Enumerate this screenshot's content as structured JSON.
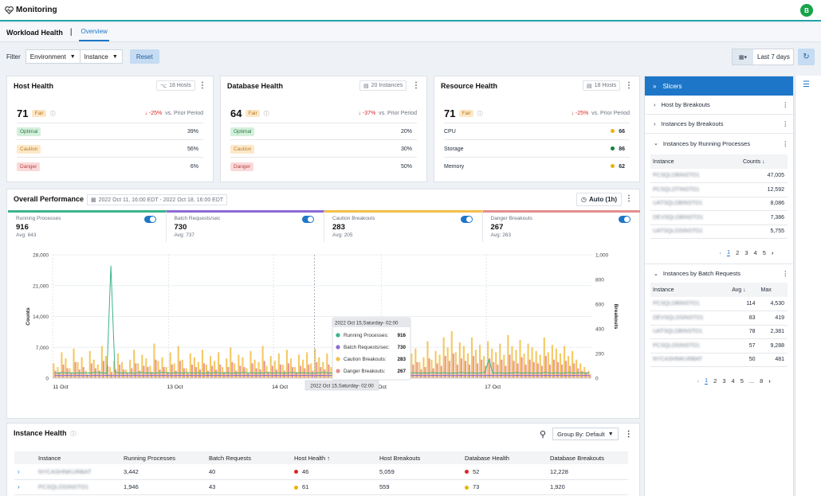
{
  "app": {
    "title": "Monitoring",
    "avatar": "B"
  },
  "nav": {
    "section": "Workload Health",
    "separator": "|",
    "tab": "Overview"
  },
  "filters": {
    "label": "Filter",
    "environment": "Environment",
    "instance": "Instance",
    "reset": "Reset",
    "date_range": "Last 7 days"
  },
  "host": {
    "title": "Host Health",
    "badge": "18 Hosts",
    "score": "71",
    "rating": "Fair",
    "delta": "↓ -25%",
    "prior": "vs. Prior Period",
    "rows": [
      {
        "label": "Optimal",
        "value": "39%"
      },
      {
        "label": "Caution",
        "value": "56%"
      },
      {
        "label": "Danger",
        "value": "6%"
      }
    ]
  },
  "database": {
    "title": "Database Health",
    "badge": "20 Instances",
    "score": "64",
    "rating": "Fair",
    "delta": "↓ -37%",
    "prior": "vs. Prior Period",
    "rows": [
      {
        "label": "Optimal",
        "value": "20%"
      },
      {
        "label": "Caution",
        "value": "30%"
      },
      {
        "label": "Danger",
        "value": "50%"
      }
    ]
  },
  "resource": {
    "title": "Resource Health",
    "badge": "18 Hosts",
    "score": "71",
    "rating": "Fair",
    "delta": "↓ -25%",
    "prior": "vs. Prior Period",
    "rows": [
      {
        "label": "CPU",
        "value": "66",
        "color": "#eab308"
      },
      {
        "label": "Storage",
        "value": "86",
        "color": "#15803d"
      },
      {
        "label": "Memory",
        "value": "62",
        "color": "#eab308"
      }
    ]
  },
  "performance": {
    "title": "Overall Performance",
    "date": "2022 Oct 11, 16:00 EDT - 2022 Oct 18, 16:00 EDT",
    "auto": "Auto (1h)",
    "metrics": [
      {
        "label": "Running Processes",
        "value": "916",
        "avg": "Avg: 643",
        "color": "#3cb38a"
      },
      {
        "label": "Batch Requests/sec",
        "value": "730",
        "avg": "Avg: 737",
        "color": "#8b6bd4"
      },
      {
        "label": "Caution Breakouts",
        "value": "283",
        "avg": "Avg: 205",
        "color": "#f2c04a"
      },
      {
        "label": "Danger Breakouts",
        "value": "267",
        "avg": "Avg: 263",
        "color": "#e48f8f"
      }
    ]
  },
  "chart_data": {
    "type": "bar",
    "left_ticks": [
      "28,000",
      "21,000",
      "14,000",
      "7,000",
      "0"
    ],
    "right_ticks": [
      "1,000",
      "800",
      "600",
      "400",
      "200",
      "0"
    ],
    "ylabel": "Counts",
    "y2label": "Breakouts",
    "x_ticks": [
      "11 Oct",
      "13 Oct",
      "14 Oct",
      "Oct",
      "17 Oct"
    ],
    "ylim": [
      0,
      28000
    ],
    "y2lim": [
      0,
      1000
    ],
    "legend": [
      {
        "name": "Running Processes",
        "value": "916",
        "color": "#3cb38a"
      },
      {
        "name": "Batch Requests/sec",
        "value": "730",
        "color": "#8b6bd4"
      },
      {
        "name": "Caution Breakouts",
        "value": "283",
        "color": "#f2c04a"
      },
      {
        "name": "Danger Breakouts",
        "value": "267",
        "color": "#e48f8f"
      }
    ],
    "tooltip_title": "2022 Oct 15,Saturday- 02:00",
    "crosshair_label": "2022 Oct 15,Saturday- 02:00",
    "series": [
      {
        "name": "Caution Breakouts",
        "axis": "right",
        "values": [
          120,
          90,
          210,
          160,
          80,
          240,
          130,
          170,
          60,
          220,
          150,
          110,
          260,
          180,
          90,
          140,
          200,
          130,
          70,
          150,
          230,
          120,
          190,
          160,
          100,
          280,
          140,
          170,
          90,
          210,
          120,
          260,
          150,
          80,
          200,
          170,
          130,
          230,
          110,
          180,
          140,
          210,
          90,
          160,
          250,
          120,
          190,
          170,
          80,
          220,
          150,
          130,
          260,
          100,
          180,
          140,
          200,
          110,
          230,
          160,
          90,
          190,
          150,
          210,
          120,
          240,
          170,
          130,
          200,
          90,
          180,
          150,
          120,
          230,
          160,
          100,
          270,
          140,
          190,
          170,
          80,
          210,
          150,
          120,
          180,
          130,
          280,
          160,
          110,
          200,
          240,
          130,
          170,
          300,
          150,
          220,
          190,
          330,
          250,
          380,
          210,
          290,
          260,
          200,
          330,
          230,
          270,
          180,
          300,
          240,
          210,
          280,
          190,
          350,
          260,
          230,
          310,
          200,
          280,
          250,
          220,
          190,
          330,
          210,
          270,
          240,
          200,
          260,
          180,
          220,
          150,
          120,
          90,
          60
        ]
      },
      {
        "name": "Danger Breakouts",
        "axis": "right",
        "values": [
          60,
          50,
          110,
          80,
          40,
          130,
          70,
          90,
          30,
          120,
          80,
          60,
          140,
          100,
          50,
          70,
          110,
          70,
          40,
          80,
          120,
          60,
          100,
          90,
          50,
          150,
          70,
          90,
          50,
          110,
          60,
          140,
          80,
          40,
          110,
          90,
          70,
          120,
          60,
          100,
          70,
          110,
          50,
          90,
          130,
          60,
          100,
          90,
          40,
          120,
          80,
          70,
          140,
          50,
          100,
          70,
          110,
          60,
          120,
          90,
          50,
          100,
          80,
          110,
          60,
          130,
          90,
          70,
          110,
          50,
          100,
          80,
          60,
          120,
          90,
          50,
          150,
          70,
          100,
          90,
          40,
          110,
          80,
          60,
          100,
          70,
          160,
          90,
          60,
          110,
          130,
          70,
          90,
          160,
          80,
          120,
          100,
          180,
          140,
          200,
          110,
          160,
          140,
          110,
          180,
          120,
          150,
          100,
          160,
          130,
          110,
          150,
          100,
          190,
          140,
          120,
          170,
          110,
          150,
          130,
          120,
          100,
          180,
          110,
          150,
          130,
          110,
          140,
          100,
          120,
          80,
          60,
          50,
          30
        ]
      },
      {
        "name": "Running Processes",
        "axis": "left",
        "values": [
          1200,
          1100,
          1300,
          1150,
          1250,
          1100,
          1200,
          1180,
          1220,
          1150,
          1300,
          1250,
          1200,
          1100,
          25500,
          1300,
          1200,
          1150,
          1250,
          1200,
          1100,
          1300,
          1250,
          1180,
          1200,
          1150,
          1250,
          1300,
          1200,
          1100,
          1250,
          1200,
          1150,
          1300,
          1180,
          1200,
          1250,
          1100,
          1200,
          1150,
          1300,
          1200,
          1180,
          1250,
          1100,
          1200,
          1150,
          1300,
          1200,
          1250,
          1100,
          1200,
          1180,
          1300,
          1150,
          1200,
          1250,
          1100,
          1200,
          1300,
          1150,
          1250,
          1200,
          1180,
          1100,
          1200,
          1250,
          1300,
          1150,
          1200,
          1100,
          1250,
          1200,
          1180,
          1300,
          1150,
          1200,
          1250,
          1100,
          1200,
          1150,
          1300,
          1200,
          1180,
          1250,
          1100,
          1200,
          1300,
          1150,
          1200,
          1250,
          1100,
          1200,
          1180,
          1300,
          1150,
          1200,
          1250,
          1100,
          1200,
          1150,
          1300,
          1200,
          1180,
          1250,
          1100,
          1200,
          1300,
          4200,
          1150,
          1200,
          1250,
          1100,
          1200,
          1180,
          1300,
          1150,
          1200,
          1250,
          1100,
          1200,
          1150,
          1300,
          1200,
          1180,
          1250,
          1100,
          1200,
          1300,
          1150,
          1200,
          1250,
          1100,
          1200
        ]
      },
      {
        "name": "Batch Requests/sec",
        "axis": "left",
        "values": [
          600,
          620,
          580,
          640,
          610,
          590,
          630,
          600,
          620,
          580,
          640,
          610,
          590,
          630,
          600,
          620,
          580,
          640,
          610,
          590,
          630,
          600,
          620,
          580,
          640,
          610,
          590,
          630,
          600,
          620,
          580,
          640,
          610,
          590,
          630,
          600,
          620,
          580,
          640,
          610,
          590,
          630,
          600,
          620,
          580,
          640,
          610,
          590,
          630,
          600,
          620,
          580,
          640,
          610,
          590,
          630,
          600,
          620,
          580,
          640,
          610,
          590,
          630,
          600,
          620,
          580,
          640,
          610,
          590,
          630,
          600,
          620,
          580,
          640,
          610,
          590,
          630,
          600,
          620,
          580,
          640,
          610,
          590,
          630,
          600,
          620,
          580,
          640,
          610,
          590,
          630,
          600,
          620,
          580,
          640,
          610,
          590,
          630,
          600,
          620,
          580,
          640,
          610,
          590,
          630,
          600,
          620,
          580,
          640,
          610,
          590,
          630,
          600,
          620,
          580,
          640,
          610,
          590,
          630,
          600,
          620,
          580,
          640,
          610,
          590,
          630,
          600,
          620,
          580,
          640,
          610,
          590,
          630,
          600
        ]
      }
    ]
  },
  "instance_health": {
    "title": "Instance Health",
    "group_by": "Group By: Default",
    "columns": [
      "Instance",
      "Running Processes",
      "Batch Requests",
      "Host Health ↑",
      "Host Breakouts",
      "Database Health",
      "Database Breakouts"
    ],
    "rows": [
      {
        "instance": "NYCASHNKURBAT",
        "running": "3,442",
        "batch": "40",
        "host_health": "46",
        "host_color": "#dc2626",
        "host_breakouts": "5,059",
        "db_health": "52",
        "db_color": "#dc2626",
        "db_breakouts": "12,228"
      },
      {
        "instance": "PCSQLOSINSTO1",
        "running": "1,946",
        "batch": "43",
        "host_health": "61",
        "host_color": "#eab308",
        "host_breakouts": "559",
        "db_health": "73",
        "db_color": "#eab308",
        "db_breakouts": "1,920"
      }
    ]
  },
  "slicers": {
    "title": "Slicers",
    "groups": [
      "Host by Breakouts",
      "Instances by Breakouts",
      "Instances by Running Processes"
    ],
    "running_table": {
      "col1": "Instance",
      "col2": "Counts ↓",
      "rows": [
        {
          "name": "PCSQLDBINSTO1",
          "value": "47,005"
        },
        {
          "name": "PCSQLOTINSTO1",
          "value": "12,592"
        },
        {
          "name": "UATSQLDBINSTO1",
          "value": "8,086"
        },
        {
          "name": "DEVSQLDBINSTO1",
          "value": "7,386"
        },
        {
          "name": "UATSQLOSINSTO1",
          "value": "5,755"
        }
      ],
      "pages": [
        "1",
        "2",
        "3",
        "4",
        "5"
      ]
    },
    "batch_group": "Instances by Batch Requests",
    "batch_table": {
      "col1": "Instance",
      "col2": "Avg ↓",
      "col3": "Max",
      "rows": [
        {
          "name": "PCSQLDBINSTO1",
          "avg": "114",
          "max": "4,530"
        },
        {
          "name": "DEVSQLOSINSTO1",
          "avg": "83",
          "max": "419"
        },
        {
          "name": "UATSQLDBINSTO1",
          "avg": "78",
          "max": "2,381"
        },
        {
          "name": "PCSQLOSINSTO1",
          "avg": "57",
          "max": "9,288"
        },
        {
          "name": "NYCASHNKURBAT",
          "avg": "50",
          "max": "481"
        }
      ],
      "pages": [
        "1",
        "2",
        "3",
        "4",
        "5",
        "...",
        "8"
      ]
    }
  }
}
